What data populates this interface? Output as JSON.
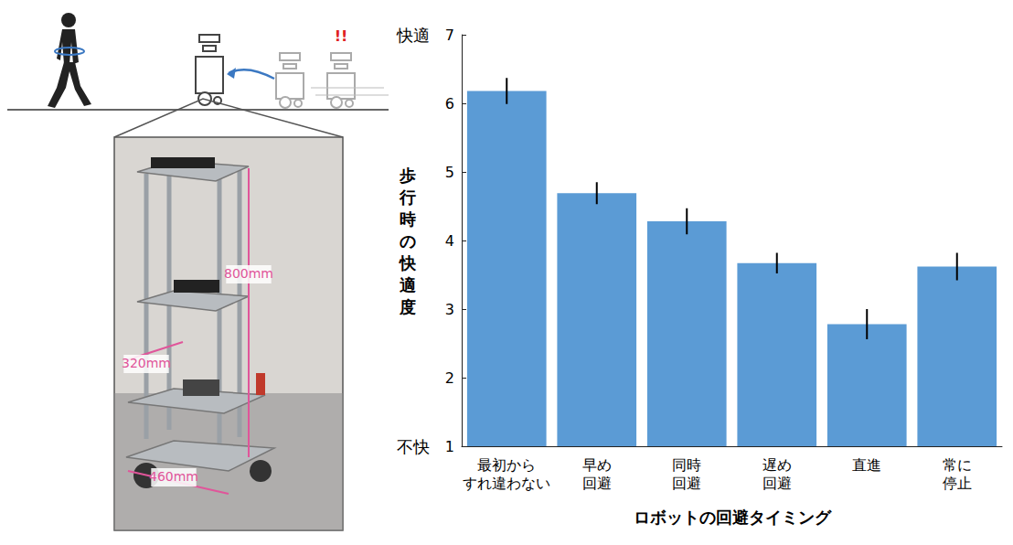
{
  "chart_data": {
    "type": "bar",
    "categories": [
      "最初からすれ違わない",
      "早め回避",
      "同時回避",
      "遅め回避",
      "直進",
      "常に停止"
    ],
    "values": [
      6.18,
      4.69,
      4.28,
      3.67,
      2.78,
      3.62
    ],
    "errors": [
      0.19,
      0.16,
      0.19,
      0.15,
      0.22,
      0.2
    ],
    "color": "#5b9bd5",
    "ylim": [
      1,
      7
    ],
    "yticks": [
      1,
      2,
      3,
      4,
      5,
      6,
      7
    ],
    "ylabel": "歩行時の快適度",
    "xlabel": "ロボットの回避タイミング",
    "annotations": [
      {
        "text": "快適",
        "y": 7
      },
      {
        "text": "不快",
        "y": 1
      }
    ],
    "grid": false
  },
  "illustration": {
    "alert": "!!",
    "dimensions": [
      "800mm",
      "320mm",
      "460mm"
    ]
  }
}
